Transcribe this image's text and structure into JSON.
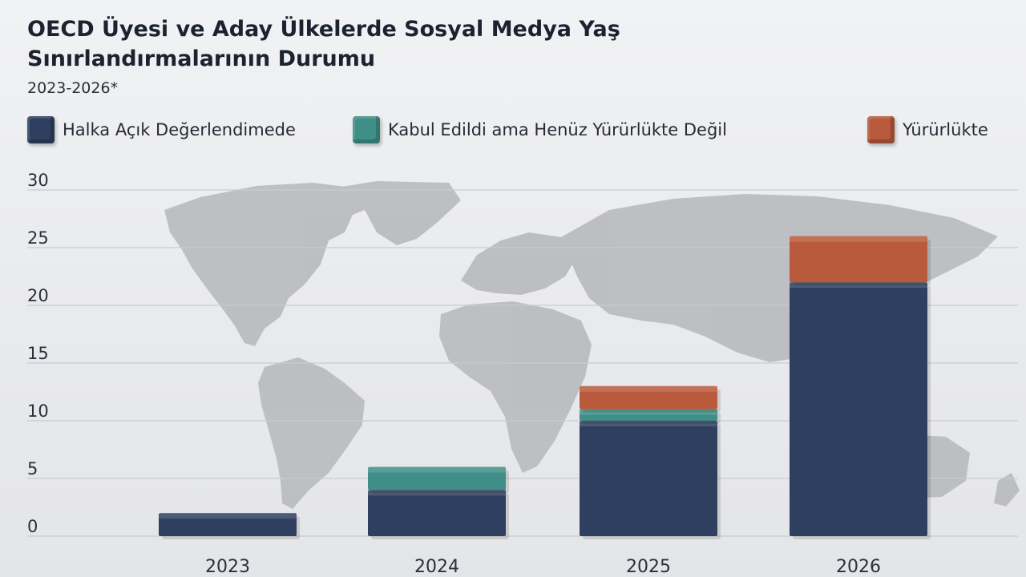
{
  "title": "OECD Üyesi ve Aday Ülkelerde Sosyal Medya Yaş Sınırlandırmalarının Durumu",
  "subtitle": "2023-2026*",
  "colors": {
    "public_review": "#2f3f5f",
    "adopted_not_in_force": "#3f8f88",
    "in_force": "#b85a3b",
    "grid": "#c9cbd0",
    "map": "#b5b7bb"
  },
  "legend": [
    {
      "label": "Halka Açık Değerlendimede",
      "color": "#2f3f5f"
    },
    {
      "label": "Kabul Edildi ama Henüz Yürürlükte Değil",
      "color": "#3f8f88"
    },
    {
      "label": "Yürürlükte",
      "color": "#b85a3b"
    }
  ],
  "chart_data": {
    "type": "bar",
    "stacked": true,
    "categories": [
      "2023",
      "2024",
      "2025",
      "2026"
    ],
    "series": [
      {
        "name": "Halka Açık Değerlendimede",
        "color": "#2f3f5f",
        "values": [
          2,
          4,
          10,
          22
        ]
      },
      {
        "name": "Kabul Edildi ama Henüz Yürürlükte Değil",
        "color": "#3f8f88",
        "values": [
          0,
          2,
          1,
          0
        ]
      },
      {
        "name": "Yürürlükte",
        "color": "#b85a3b",
        "values": [
          0,
          0,
          2,
          4
        ]
      }
    ],
    "yticks": [
      "0",
      "5",
      "10",
      "15",
      "20",
      "25",
      "30"
    ],
    "ylim": [
      0,
      30
    ],
    "grid": true,
    "legend_position": "top"
  }
}
